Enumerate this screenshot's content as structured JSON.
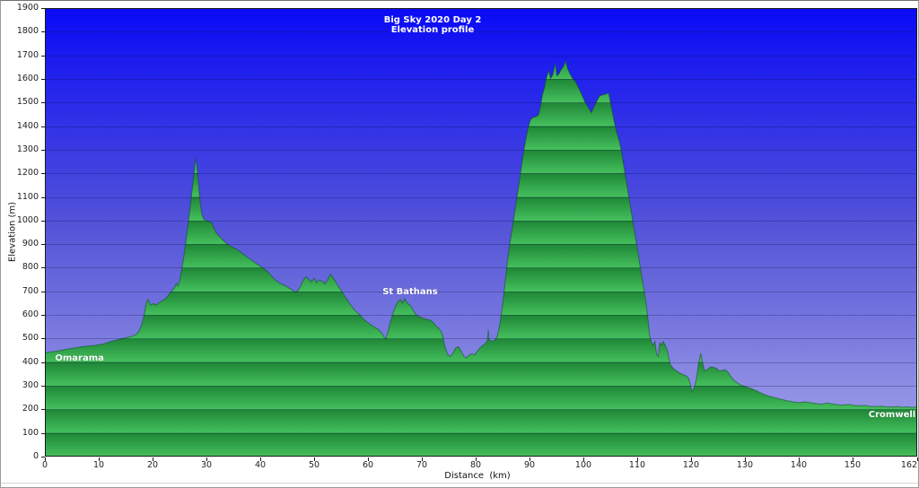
{
  "chart_data": {
    "type": "area",
    "title_lines": [
      "Big Sky 2020 Day 2",
      "Elevation profile"
    ],
    "xlabel": "Distance  (km)",
    "ylabel": "Elevation (m)",
    "xlim": [
      0,
      162
    ],
    "ylim": [
      0,
      1900
    ],
    "x_ticks": [
      0,
      10,
      20,
      30,
      40,
      50,
      60,
      70,
      80,
      90,
      100,
      110,
      120,
      130,
      140,
      150,
      162
    ],
    "y_tick_step": 100,
    "grid": "horizontal-100m",
    "legend": "none",
    "annotations": [
      {
        "label": "Omarama",
        "km": 1.9,
        "elev": 414,
        "align": "left"
      },
      {
        "label": "St Bathans",
        "km": 62.7,
        "elev": 695,
        "align": "left"
      },
      {
        "label": "Cromwell",
        "km": 161.7,
        "elev": 175,
        "align": "right"
      }
    ],
    "profile": [
      [
        0,
        440
      ],
      [
        1,
        443
      ],
      [
        2,
        446
      ],
      [
        3,
        450
      ],
      [
        4,
        455
      ],
      [
        5,
        458
      ],
      [
        6,
        462
      ],
      [
        7,
        466
      ],
      [
        8,
        468
      ],
      [
        9,
        470
      ],
      [
        10,
        474
      ],
      [
        11,
        478
      ],
      [
        12,
        486
      ],
      [
        13,
        492
      ],
      [
        14,
        498
      ],
      [
        15,
        503
      ],
      [
        16,
        508
      ],
      [
        17,
        518
      ],
      [
        17.5,
        532
      ],
      [
        18,
        560
      ],
      [
        18.5,
        606
      ],
      [
        18.8,
        648
      ],
      [
        19.1,
        666
      ],
      [
        19.4,
        655
      ],
      [
        19.7,
        642
      ],
      [
        20.2,
        648
      ],
      [
        20.7,
        642
      ],
      [
        21.2,
        652
      ],
      [
        21.7,
        658
      ],
      [
        22.2,
        666
      ],
      [
        22.7,
        676
      ],
      [
        23.2,
        692
      ],
      [
        23.7,
        704
      ],
      [
        24.1,
        716
      ],
      [
        24.4,
        734
      ],
      [
        24.7,
        722
      ],
      [
        25,
        742
      ],
      [
        25.4,
        790
      ],
      [
        25.8,
        846
      ],
      [
        26.2,
        912
      ],
      [
        26.6,
        986
      ],
      [
        27,
        1060
      ],
      [
        27.4,
        1140
      ],
      [
        27.7,
        1200
      ],
      [
        28,
        1264
      ],
      [
        28.2,
        1235
      ],
      [
        28.5,
        1160
      ],
      [
        28.8,
        1085
      ],
      [
        29.1,
        1030
      ],
      [
        29.5,
        1005
      ],
      [
        30.2,
        998
      ],
      [
        31,
        990
      ],
      [
        31.4,
        968
      ],
      [
        31.8,
        948
      ],
      [
        32.6,
        928
      ],
      [
        33.6,
        905
      ],
      [
        34.6,
        890
      ],
      [
        35.6,
        878
      ],
      [
        36.6,
        862
      ],
      [
        37.6,
        844
      ],
      [
        38.6,
        828
      ],
      [
        39.6,
        812
      ],
      [
        40.6,
        798
      ],
      [
        41.6,
        778
      ],
      [
        42.6,
        752
      ],
      [
        43.6,
        734
      ],
      [
        44.6,
        724
      ],
      [
        45.3,
        714
      ],
      [
        46,
        704
      ],
      [
        46.5,
        696
      ],
      [
        47,
        702
      ],
      [
        47.5,
        722
      ],
      [
        48,
        748
      ],
      [
        48.5,
        762
      ],
      [
        49,
        750
      ],
      [
        49.5,
        740
      ],
      [
        50,
        756
      ],
      [
        50.5,
        736
      ],
      [
        51,
        748
      ],
      [
        51.5,
        742
      ],
      [
        52,
        732
      ],
      [
        52.5,
        748
      ],
      [
        53,
        772
      ],
      [
        53.4,
        762
      ],
      [
        54,
        740
      ],
      [
        54.6,
        718
      ],
      [
        55.2,
        698
      ],
      [
        55.8,
        676
      ],
      [
        56.6,
        648
      ],
      [
        57.6,
        618
      ],
      [
        58.6,
        598
      ],
      [
        59.3,
        580
      ],
      [
        60.2,
        564
      ],
      [
        61.2,
        548
      ],
      [
        62,
        538
      ],
      [
        62.6,
        520
      ],
      [
        63,
        506
      ],
      [
        63.3,
        498
      ],
      [
        63.7,
        525
      ],
      [
        64.1,
        565
      ],
      [
        64.6,
        604
      ],
      [
        65.1,
        634
      ],
      [
        65.6,
        657
      ],
      [
        66,
        666
      ],
      [
        66.4,
        650
      ],
      [
        66.8,
        670
      ],
      [
        67.1,
        658
      ],
      [
        67.5,
        646
      ],
      [
        68,
        638
      ],
      [
        68.4,
        618
      ],
      [
        68.8,
        604
      ],
      [
        69.4,
        594
      ],
      [
        70,
        588
      ],
      [
        70.8,
        582
      ],
      [
        71.6,
        578
      ],
      [
        72.1,
        568
      ],
      [
        72.6,
        554
      ],
      [
        73.1,
        544
      ],
      [
        73.6,
        530
      ],
      [
        73.9,
        508
      ],
      [
        74.3,
        466
      ],
      [
        74.8,
        432
      ],
      [
        75.3,
        424
      ],
      [
        75.8,
        440
      ],
      [
        76.3,
        460
      ],
      [
        76.8,
        466
      ],
      [
        77.3,
        448
      ],
      [
        77.8,
        424
      ],
      [
        78.3,
        418
      ],
      [
        78.8,
        430
      ],
      [
        79.3,
        436
      ],
      [
        79.8,
        430
      ],
      [
        80.3,
        446
      ],
      [
        80.8,
        460
      ],
      [
        81.4,
        472
      ],
      [
        81.9,
        482
      ],
      [
        82.2,
        492
      ],
      [
        82.35,
        536
      ],
      [
        82.5,
        496
      ],
      [
        83,
        488
      ],
      [
        83.5,
        492
      ],
      [
        84,
        508
      ],
      [
        84.5,
        562
      ],
      [
        85,
        642
      ],
      [
        85.4,
        722
      ],
      [
        85.8,
        806
      ],
      [
        86.2,
        878
      ],
      [
        86.7,
        952
      ],
      [
        87.2,
        1028
      ],
      [
        87.7,
        1104
      ],
      [
        88.2,
        1180
      ],
      [
        88.7,
        1258
      ],
      [
        89.2,
        1330
      ],
      [
        89.7,
        1390
      ],
      [
        90.2,
        1428
      ],
      [
        90.7,
        1438
      ],
      [
        91.2,
        1440
      ],
      [
        91.7,
        1448
      ],
      [
        92.1,
        1492
      ],
      [
        92.4,
        1532
      ],
      [
        92.8,
        1564
      ],
      [
        93.1,
        1602
      ],
      [
        93.4,
        1622
      ],
      [
        93.6,
        1636
      ],
      [
        93.9,
        1602
      ],
      [
        94.3,
        1616
      ],
      [
        94.8,
        1668
      ],
      [
        95.1,
        1612
      ],
      [
        95.5,
        1622
      ],
      [
        95.9,
        1640
      ],
      [
        96.3,
        1652
      ],
      [
        96.7,
        1676
      ],
      [
        97.1,
        1642
      ],
      [
        97.5,
        1622
      ],
      [
        98,
        1602
      ],
      [
        98.5,
        1590
      ],
      [
        99.1,
        1562
      ],
      [
        99.7,
        1534
      ],
      [
        100.3,
        1502
      ],
      [
        101,
        1476
      ],
      [
        101.5,
        1456
      ],
      [
        102,
        1482
      ],
      [
        102.5,
        1506
      ],
      [
        103,
        1528
      ],
      [
        103.6,
        1532
      ],
      [
        104.2,
        1536
      ],
      [
        104.7,
        1540
      ],
      [
        105.2,
        1482
      ],
      [
        105.7,
        1422
      ],
      [
        106.2,
        1372
      ],
      [
        106.6,
        1342
      ],
      [
        107,
        1302
      ],
      [
        107.5,
        1232
      ],
      [
        108,
        1162
      ],
      [
        108.5,
        1092
      ],
      [
        109,
        1022
      ],
      [
        109.5,
        952
      ],
      [
        110,
        882
      ],
      [
        110.5,
        812
      ],
      [
        111,
        742
      ],
      [
        111.5,
        672
      ],
      [
        112,
        582
      ],
      [
        112.3,
        512
      ],
      [
        112.7,
        482
      ],
      [
        113,
        472
      ],
      [
        113.3,
        488
      ],
      [
        113.6,
        432
      ],
      [
        113.9,
        424
      ],
      [
        114.2,
        482
      ],
      [
        114.5,
        472
      ],
      [
        114.8,
        488
      ],
      [
        115.2,
        472
      ],
      [
        115.6,
        450
      ],
      [
        116.1,
        392
      ],
      [
        116.6,
        376
      ],
      [
        117.1,
        366
      ],
      [
        117.6,
        358
      ],
      [
        118.1,
        352
      ],
      [
        118.6,
        346
      ],
      [
        119.1,
        342
      ],
      [
        119.6,
        330
      ],
      [
        119.9,
        302
      ],
      [
        120.2,
        274
      ],
      [
        120.7,
        302
      ],
      [
        121,
        330
      ],
      [
        121.4,
        395
      ],
      [
        121.8,
        438
      ],
      [
        122.1,
        402
      ],
      [
        122.5,
        364
      ],
      [
        123.1,
        370
      ],
      [
        123.6,
        380
      ],
      [
        124.2,
        378
      ],
      [
        124.8,
        372
      ],
      [
        125.3,
        362
      ],
      [
        125.8,
        366
      ],
      [
        126.3,
        368
      ],
      [
        126.8,
        360
      ],
      [
        127.3,
        342
      ],
      [
        128,
        322
      ],
      [
        128.6,
        312
      ],
      [
        129.3,
        303
      ],
      [
        130.2,
        296
      ],
      [
        131.2,
        288
      ],
      [
        132.2,
        278
      ],
      [
        133.2,
        267
      ],
      [
        134.2,
        258
      ],
      [
        135.2,
        251
      ],
      [
        136.2,
        246
      ],
      [
        137.2,
        240
      ],
      [
        138.2,
        235
      ],
      [
        139.2,
        231
      ],
      [
        140.2,
        229
      ],
      [
        141.2,
        232
      ],
      [
        142.2,
        228
      ],
      [
        143.2,
        225
      ],
      [
        144.2,
        222
      ],
      [
        145.2,
        227
      ],
      [
        146.2,
        223
      ],
      [
        147.2,
        220
      ],
      [
        148.2,
        218
      ],
      [
        149.2,
        221
      ],
      [
        150.2,
        217
      ],
      [
        151.2,
        215
      ],
      [
        152.2,
        217
      ],
      [
        153.2,
        213
      ],
      [
        154.2,
        212
      ],
      [
        155.2,
        214
      ],
      [
        156.2,
        211
      ],
      [
        157.2,
        210
      ],
      [
        158.2,
        212
      ],
      [
        159.2,
        209
      ],
      [
        160.2,
        211
      ],
      [
        161,
        208
      ],
      [
        162,
        212
      ]
    ]
  },
  "colors": {
    "sky_top": "#0a0af6",
    "sky_mid": "#5656d8",
    "sky_bottom": "#a6a6e8",
    "band_dark": "#1e8636",
    "band_light": "#45c05d",
    "profile_outline": "#0d4d1f",
    "gridline": "rgba(15,15,70,0.28)",
    "plot_border": "#1b1b1b",
    "tick_color": "#1b1b1b",
    "text_color": "#222222",
    "annotation_color": "#ffffff"
  }
}
